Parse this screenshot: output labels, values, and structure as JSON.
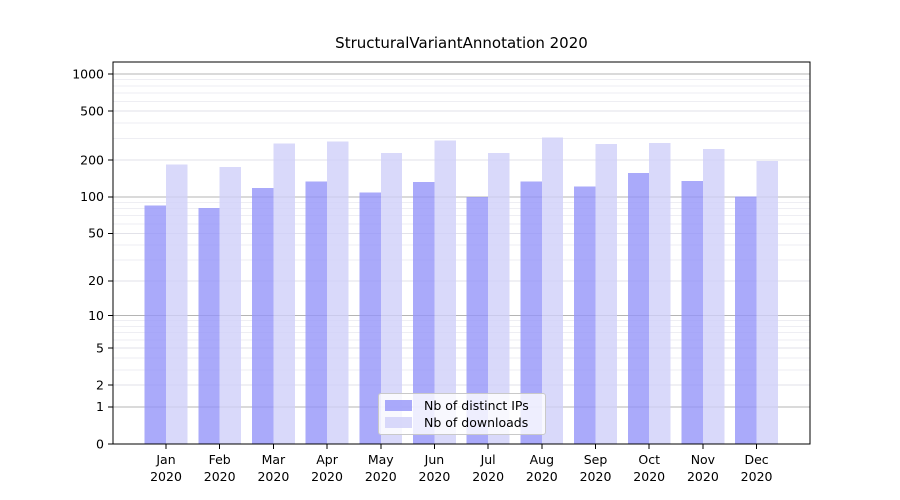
{
  "window": {
    "background": "#ffffff"
  },
  "chart_data": {
    "type": "bar",
    "title": "StructuralVariantAnnotation 2020",
    "categories": [
      "Jan",
      "Feb",
      "Mar",
      "Apr",
      "May",
      "Jun",
      "Jul",
      "Aug",
      "Sep",
      "Oct",
      "Nov",
      "Dec"
    ],
    "category_year": "2020",
    "series": [
      {
        "name": "Nb of distinct IPs",
        "color": "#9595f9",
        "fill_opacity": 0.8,
        "values": [
          85,
          81,
          118,
          133,
          109,
          132,
          100,
          134,
          122,
          157,
          135,
          101
        ]
      },
      {
        "name": "Nb of downloads",
        "color": "#d0d0f9",
        "fill_opacity": 0.8,
        "values": [
          184,
          176,
          272,
          282,
          227,
          289,
          228,
          304,
          270,
          274,
          246,
          197
        ]
      }
    ],
    "scale": "log1p",
    "ylim": [
      0,
      1000
    ],
    "y_ticks": [
      0,
      1,
      2,
      5,
      10,
      20,
      50,
      100,
      200,
      500,
      1000
    ],
    "y_major_grid_values": [
      1,
      10,
      100,
      1000
    ],
    "y_minor_grid_values": [
      3,
      4,
      6,
      7,
      8,
      9,
      30,
      40,
      60,
      70,
      80,
      90,
      300,
      400,
      600,
      700,
      800,
      900
    ],
    "grid": "horizontal",
    "legend_position": "inside-bottom-center",
    "colors": {
      "major_grid": "#b4b4b4",
      "mid_grid": "#e2e2e9",
      "minor_grid": "#eeeef3",
      "axis": "#000000",
      "tick_text": "#000000"
    }
  }
}
